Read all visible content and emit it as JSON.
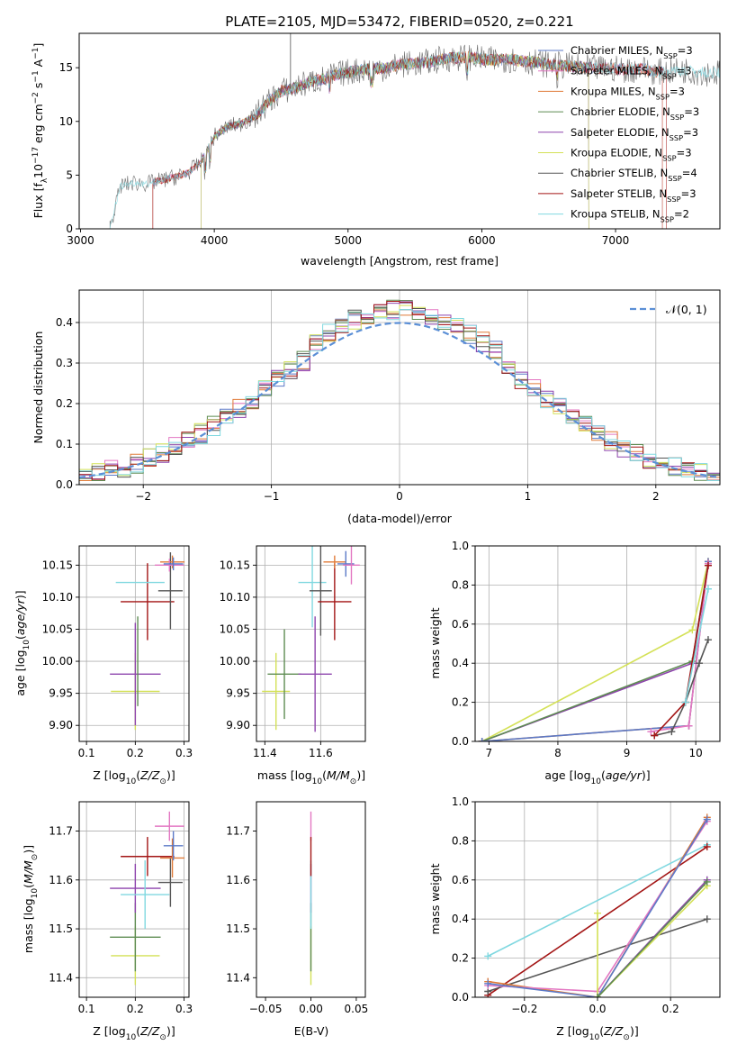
{
  "figure": {
    "title": "PLATE=2105, MJD=53472, FIBERID=0520, z=0.221"
  },
  "legend_labels": [
    {
      "name": "Chabrier MILES",
      "n": "3",
      "color": "#5b79c7"
    },
    {
      "name": "Salpeter MILES",
      "n": "3",
      "color": "#e377c2"
    },
    {
      "name": "Kroupa MILES",
      "n": "3",
      "color": "#e07b39"
    },
    {
      "name": "Chabrier ELODIE",
      "n": "3",
      "color": "#5e8c52"
    },
    {
      "name": "Salpeter ELODIE",
      "n": "3",
      "color": "#8e44ad"
    },
    {
      "name": "Kroupa ELODIE",
      "n": "3",
      "color": "#d4e157"
    },
    {
      "name": "Chabrier STELIB",
      "n": "4",
      "color": "#555555"
    },
    {
      "name": "Salpeter STELIB",
      "n": "3",
      "color": "#a31515"
    },
    {
      "name": "Kroupa STELIB",
      "n": "2",
      "color": "#80d8e0"
    }
  ],
  "chart_data": [
    {
      "id": "spectrum",
      "type": "line",
      "xlabel": "wavelength [Angstrom, rest frame]",
      "ylabel": "Flux [f",
      "xlim": [
        2990,
        7780
      ],
      "ylim": [
        0,
        18.2
      ],
      "xticks": [
        3000,
        4000,
        5000,
        6000,
        7000
      ],
      "yticks": [
        0,
        5,
        10,
        15
      ],
      "grid": false,
      "legend_placement": "top-right",
      "curve": {
        "x": [
          3220,
          3300,
          3400,
          3500,
          3600,
          3700,
          3800,
          3900,
          4000,
          4100,
          4200,
          4300,
          4400,
          4500,
          4600,
          4700,
          4800,
          4900,
          5000,
          5100,
          5200,
          5300,
          5400,
          5500,
          5600,
          5700,
          5800,
          5900,
          6000,
          6100,
          6200,
          6300,
          6400,
          6500,
          6600,
          6700,
          6800,
          6900,
          7000,
          7100,
          7200,
          7300,
          7400,
          7500,
          7600,
          7700
        ],
        "y": [
          0.2,
          4.0,
          4.3,
          4.2,
          4.5,
          4.8,
          5.2,
          6.2,
          8.6,
          9.5,
          9.8,
          10.4,
          11.8,
          12.8,
          13.1,
          13.6,
          13.9,
          14.3,
          14.6,
          14.8,
          14.9,
          15.0,
          15.3,
          15.4,
          15.5,
          15.8,
          15.9,
          16.0,
          15.8,
          15.7,
          15.8,
          15.6,
          15.5,
          15.3,
          15.2,
          15.1,
          15.0,
          14.9,
          14.9,
          14.8,
          14.9,
          14.6,
          14.7,
          14.8,
          14.6,
          14.5
        ]
      },
      "start_x": {
        "Chabrier MILES": 3540,
        "Salpeter MILES": 3540,
        "Kroupa MILES": 3540,
        "Chabrier ELODIE": 3900,
        "Salpeter ELODIE": 3900,
        "Kroupa ELODIE": 3900,
        "Chabrier STELIB": 3220,
        "Salpeter STELIB": 3540,
        "Kroupa STELIB": 3220
      },
      "end_x": {
        "Chabrier MILES": 7350,
        "Salpeter MILES": 7350,
        "Kroupa MILES": 7350,
        "Chabrier ELODIE": 6800,
        "Salpeter ELODIE": 6800,
        "Kroupa ELODIE": 6800,
        "Chabrier STELIB": 7780,
        "Salpeter STELIB": 7380,
        "Kroupa STELIB": 7780
      }
    },
    {
      "id": "residuals",
      "type": "line",
      "xlabel": "(data-model)/error",
      "ylabel": "Normed distribution",
      "xlim": [
        -2.5,
        2.5
      ],
      "ylim": [
        0,
        0.48
      ],
      "xticks": [
        -2,
        -1,
        0,
        1,
        2
      ],
      "yticks": [
        0.0,
        0.1,
        0.2,
        0.3,
        0.4
      ],
      "grid": true,
      "legend_placement": "top-right",
      "gaussian_label": "𝒩(0, 1)",
      "hist_bin_width": 0.1,
      "hist_center": [
        0.0,
        0.38
      ]
    },
    {
      "id": "age_vs_Z",
      "type": "scatter",
      "xlabel": "Z [log",
      "ylabel": "age  [log",
      "xlim": [
        0.085,
        0.31
      ],
      "ylim": [
        9.875,
        10.18
      ],
      "xticks": [
        0.1,
        0.2,
        0.3
      ],
      "yticks": [
        9.9,
        9.95,
        10.0,
        10.05,
        10.1,
        10.15
      ],
      "grid": true,
      "points": [
        {
          "series": "Kroupa ELODIE",
          "x": 0.2,
          "xerr": 0.05,
          "y": 9.953,
          "yerr": 0.06
        },
        {
          "series": "Salpeter ELODIE",
          "x": 0.2,
          "xerr": 0.052,
          "y": 9.98,
          "yerr": 0.08
        },
        {
          "series": "Chabrier ELODIE",
          "x": 0.205,
          "xerr": 0.0,
          "y": 10.0,
          "yerr": 0.07
        },
        {
          "series": "Salpeter STELIB",
          "x": 0.225,
          "xerr": 0.055,
          "y": 10.093,
          "yerr": 0.06
        },
        {
          "series": "Kroupa STELIB",
          "x": 0.21,
          "xerr": 0.05,
          "y": 10.123,
          "yerr": 0.0
        },
        {
          "series": "Chabrier STELIB",
          "x": 0.272,
          "xerr": 0.025,
          "y": 10.11,
          "yerr": 0.06
        },
        {
          "series": "Kroupa MILES",
          "x": 0.276,
          "xerr": 0.025,
          "y": 10.155,
          "yerr": 0.01
        },
        {
          "series": "Salpeter MILES",
          "x": 0.27,
          "xerr": 0.03,
          "y": 10.15,
          "yerr": 0.01
        },
        {
          "series": "Chabrier MILES",
          "x": 0.278,
          "xerr": 0.02,
          "y": 10.152,
          "yerr": 0.01
        }
      ]
    },
    {
      "id": "age_vs_mass",
      "type": "scatter",
      "xlabel": "mass [log",
      "ylabel": "",
      "xlim": [
        11.37,
        11.76
      ],
      "ylim": [
        9.875,
        10.18
      ],
      "xticks": [
        11.4,
        11.6
      ],
      "yticks": [
        9.9,
        9.95,
        10.0,
        10.05,
        10.1,
        10.15
      ],
      "grid": true,
      "points": [
        {
          "series": "Kroupa ELODIE",
          "x": 11.44,
          "xerr": 0.05,
          "y": 9.953,
          "yerr": 0.06
        },
        {
          "series": "Chabrier ELODIE",
          "x": 11.47,
          "xerr": 0.06,
          "y": 9.98,
          "yerr": 0.07
        },
        {
          "series": "Salpeter ELODIE",
          "x": 11.58,
          "xerr": 0.06,
          "y": 9.98,
          "yerr": 0.09
        },
        {
          "series": "Kroupa STELIB",
          "x": 11.57,
          "xerr": 0.05,
          "y": 10.123,
          "yerr": 0.07
        },
        {
          "series": "Chabrier STELIB",
          "x": 11.6,
          "xerr": 0.04,
          "y": 10.11,
          "yerr": 0.07
        },
        {
          "series": "Salpeter STELIB",
          "x": 11.65,
          "xerr": 0.06,
          "y": 10.093,
          "yerr": 0.06
        },
        {
          "series": "Kroupa MILES",
          "x": 11.65,
          "xerr": 0.04,
          "y": 10.155,
          "yerr": 0.01
        },
        {
          "series": "Chabrier MILES",
          "x": 11.69,
          "xerr": 0.03,
          "y": 10.152,
          "yerr": 0.02
        },
        {
          "series": "Salpeter MILES",
          "x": 11.71,
          "xerr": 0.03,
          "y": 10.15,
          "yerr": 0.03
        }
      ]
    },
    {
      "id": "mw_vs_age",
      "type": "line",
      "xlabel": "age  [log",
      "ylabel": "mass weight",
      "xlim": [
        6.8,
        10.35
      ],
      "ylim": [
        0.0,
        1.0
      ],
      "xticks": [
        7,
        8,
        9,
        10
      ],
      "yticks": [
        0.0,
        0.2,
        0.4,
        0.6,
        0.8,
        1.0
      ],
      "grid": true,
      "series": [
        {
          "series": "Kroupa ELODIE",
          "x": [
            6.9,
            9.95,
            10.18
          ],
          "y": [
            0.0,
            0.57,
            0.92
          ]
        },
        {
          "series": "Salpeter ELODIE",
          "x": [
            6.9,
            9.95,
            10.18
          ],
          "y": [
            0.0,
            0.4,
            0.9
          ]
        },
        {
          "series": "Chabrier ELODIE",
          "x": [
            6.9,
            9.95,
            10.18
          ],
          "y": [
            0.0,
            0.41,
            0.91
          ]
        },
        {
          "series": "Kroupa MILES",
          "x": [
            6.9,
            9.9,
            10.18
          ],
          "y": [
            0.0,
            0.08,
            0.92
          ]
        },
        {
          "series": "Chabrier MILES",
          "x": [
            6.9,
            9.9,
            10.18
          ],
          "y": [
            0.0,
            0.08,
            0.92
          ]
        },
        {
          "series": "Salpeter MILES",
          "x": [
            9.35,
            9.9,
            10.18
          ],
          "y": [
            0.05,
            0.08,
            0.91
          ]
        },
        {
          "series": "Chabrier STELIB",
          "x": [
            9.4,
            9.65,
            9.85,
            10.05,
            10.18
          ],
          "y": [
            0.03,
            0.05,
            0.2,
            0.4,
            0.52
          ]
        },
        {
          "series": "Salpeter STELIB",
          "x": [
            9.4,
            9.85,
            10.18
          ],
          "y": [
            0.03,
            0.2,
            0.9
          ]
        },
        {
          "series": "Kroupa STELIB",
          "x": [
            9.85,
            10.18
          ],
          "y": [
            0.2,
            0.78
          ]
        }
      ]
    },
    {
      "id": "mass_vs_Z",
      "type": "scatter",
      "xlabel": "Z [log",
      "ylabel": "mass [log",
      "xlim": [
        0.085,
        0.31
      ],
      "ylim": [
        11.36,
        11.76
      ],
      "xticks": [
        0.1,
        0.2,
        0.3
      ],
      "yticks": [
        11.4,
        11.5,
        11.6,
        11.7
      ],
      "grid": true,
      "points": [
        {
          "series": "Kroupa ELODIE",
          "x": 0.2,
          "xerr": 0.05,
          "y": 11.445,
          "yerr": 0.06
        },
        {
          "series": "Chabrier ELODIE",
          "x": 0.2,
          "xerr": 0.052,
          "y": 11.483,
          "yerr": 0.07
        },
        {
          "series": "Salpeter ELODIE",
          "x": 0.2,
          "xerr": 0.052,
          "y": 11.583,
          "yerr": 0.05
        },
        {
          "series": "Kroupa STELIB",
          "x": 0.22,
          "xerr": 0.05,
          "y": 11.57,
          "yerr": 0.07
        },
        {
          "series": "Chabrier STELIB",
          "x": 0.272,
          "xerr": 0.025,
          "y": 11.595,
          "yerr": 0.05
        },
        {
          "series": "Salpeter STELIB",
          "x": 0.225,
          "xerr": 0.055,
          "y": 11.648,
          "yerr": 0.04
        },
        {
          "series": "Kroupa MILES",
          "x": 0.276,
          "xerr": 0.025,
          "y": 11.645,
          "yerr": 0.04
        },
        {
          "series": "Chabrier MILES",
          "x": 0.278,
          "xerr": 0.02,
          "y": 11.67,
          "yerr": 0.03
        },
        {
          "series": "Salpeter MILES",
          "x": 0.27,
          "xerr": 0.03,
          "y": 11.71,
          "yerr": 0.03
        }
      ]
    },
    {
      "id": "mass_vs_ebv",
      "type": "scatter",
      "xlabel": "E(B-V)",
      "ylabel": "",
      "xlim": [
        -0.06,
        0.06
      ],
      "ylim": [
        11.36,
        11.76
      ],
      "xticks": [
        -0.05,
        0.0,
        0.05
      ],
      "yticks": [
        11.4,
        11.5,
        11.6,
        11.7
      ],
      "grid": false,
      "points": [
        {
          "series": "Kroupa ELODIE",
          "x": 0.0,
          "xerr": 0.0,
          "y": 11.445,
          "yerr": 0.06
        },
        {
          "series": "Chabrier ELODIE",
          "x": 0.0,
          "xerr": 0.0,
          "y": 11.483,
          "yerr": 0.07
        },
        {
          "series": "Salpeter ELODIE",
          "x": 0.0,
          "xerr": 0.0,
          "y": 11.583,
          "yerr": 0.05
        },
        {
          "series": "Kroupa STELIB",
          "x": 0.0,
          "xerr": 0.0,
          "y": 11.57,
          "yerr": 0.07
        },
        {
          "series": "Salpeter MILES",
          "x": 0.0,
          "xerr": 0.0,
          "y": 11.71,
          "yerr": 0.03
        },
        {
          "series": "Salpeter STELIB",
          "x": 0.0,
          "xerr": 0.0,
          "y": 11.648,
          "yerr": 0.04
        }
      ]
    },
    {
      "id": "mw_vs_Z",
      "type": "line",
      "xlabel": "Z [log",
      "ylabel": "mass weight",
      "xlim": [
        -0.335,
        0.335
      ],
      "ylim": [
        0.0,
        1.0
      ],
      "xticks": [
        -0.2,
        0.0,
        0.2
      ],
      "yticks": [
        0.0,
        0.2,
        0.4,
        0.6,
        0.8,
        1.0
      ],
      "grid": true,
      "series": [
        {
          "series": "Kroupa STELIB",
          "x": [
            -0.3,
            0.3
          ],
          "y": [
            0.21,
            0.78
          ]
        },
        {
          "series": "Salpeter STELIB",
          "x": [
            -0.3,
            0.3
          ],
          "y": [
            0.01,
            0.77
          ]
        },
        {
          "series": "Chabrier STELIB",
          "x": [
            -0.3,
            0.3
          ],
          "y": [
            0.03,
            0.4
          ]
        },
        {
          "series": "Kroupa MILES",
          "x": [
            -0.3,
            0.0,
            0.3
          ],
          "y": [
            0.08,
            0.0,
            0.92
          ]
        },
        {
          "series": "Salpeter MILES",
          "x": [
            -0.3,
            0.0,
            0.3
          ],
          "y": [
            0.06,
            0.03,
            0.9
          ]
        },
        {
          "series": "Chabrier MILES",
          "x": [
            -0.3,
            0.0,
            0.3
          ],
          "y": [
            0.07,
            0.0,
            0.91
          ]
        },
        {
          "series": "Salpeter ELODIE",
          "x": [
            0.0,
            0.3
          ],
          "y": [
            0.0,
            0.6
          ]
        },
        {
          "series": "Kroupa ELODIE",
          "x": [
            0.0,
            0.0,
            0.3
          ],
          "y": [
            0.43,
            0.0,
            0.57
          ]
        },
        {
          "series": "Chabrier ELODIE",
          "x": [
            0.0,
            0.3
          ],
          "y": [
            0.0,
            0.59
          ]
        }
      ]
    }
  ]
}
